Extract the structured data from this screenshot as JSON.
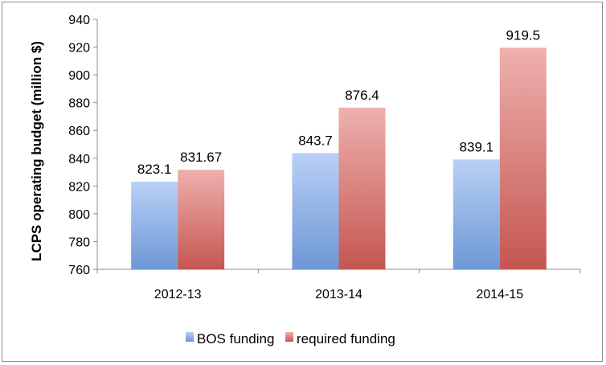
{
  "chart_data": {
    "type": "bar",
    "title": "",
    "xlabel": "",
    "ylabel": "LCPS operating budget (million $)",
    "categories": [
      "2012-13",
      "2013-14",
      "2014-15"
    ],
    "series": [
      {
        "name": "BOS funding",
        "values": [
          823.1,
          843.7,
          839.1
        ],
        "labels": [
          "823.1",
          "843.7",
          "839.1"
        ],
        "color_top": "#b9d0f5",
        "color_bottom": "#6d97d6"
      },
      {
        "name": "required funding",
        "values": [
          831.67,
          876.4,
          919.5
        ],
        "labels": [
          "831.67",
          "876.4",
          "919.5"
        ],
        "color_top": "#eeb0ae",
        "color_bottom": "#c55650"
      }
    ],
    "ylim": [
      760,
      940
    ],
    "yticks": [
      760,
      780,
      800,
      820,
      840,
      860,
      880,
      900,
      920,
      940
    ],
    "grid": false,
    "legend": "bottom-center"
  }
}
